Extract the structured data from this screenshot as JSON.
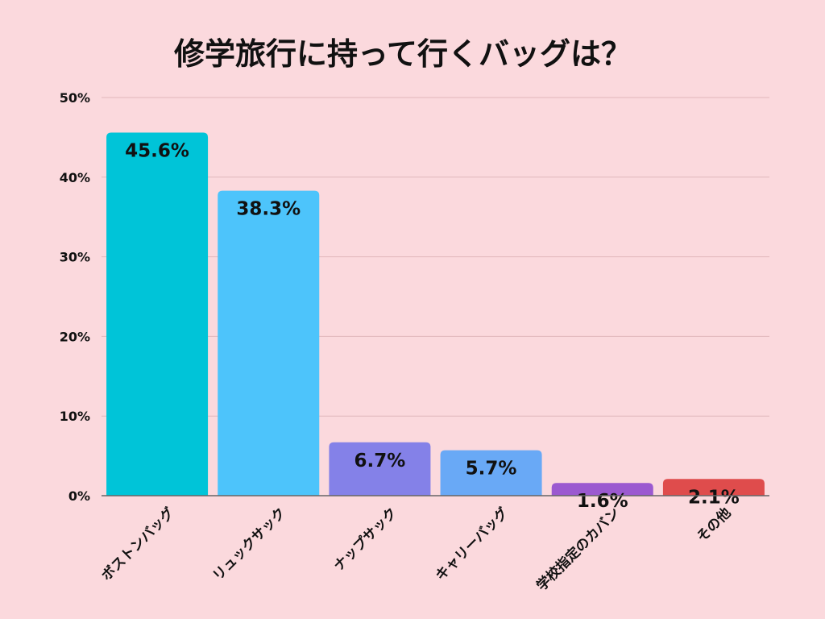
{
  "chart_data": {
    "type": "bar",
    "title": "修学旅行に持って行くバッグは？",
    "categories": [
      "ボストンバッグ",
      "リュックサック",
      "ナップサック",
      "キャリーバッグ",
      "学校指定のカバン",
      "その他"
    ],
    "values": [
      45.6,
      38.3,
      6.7,
      5.7,
      1.6,
      2.1
    ],
    "data_labels": [
      "45.6%",
      "38.3%",
      "6.7%",
      "5.7%",
      "1.6%",
      "2.1%"
    ],
    "colors": [
      "#00c4d8",
      "#4dc4fb",
      "#8481e8",
      "#69a9f6",
      "#9b59d0",
      "#df4c4c"
    ],
    "y_ticks": [
      0,
      10,
      20,
      30,
      40,
      50
    ],
    "y_tick_labels": [
      "0%",
      "10%",
      "20%",
      "30%",
      "40%",
      "50%"
    ],
    "ylim": [
      0,
      50
    ],
    "grid": true,
    "legend": "none"
  }
}
